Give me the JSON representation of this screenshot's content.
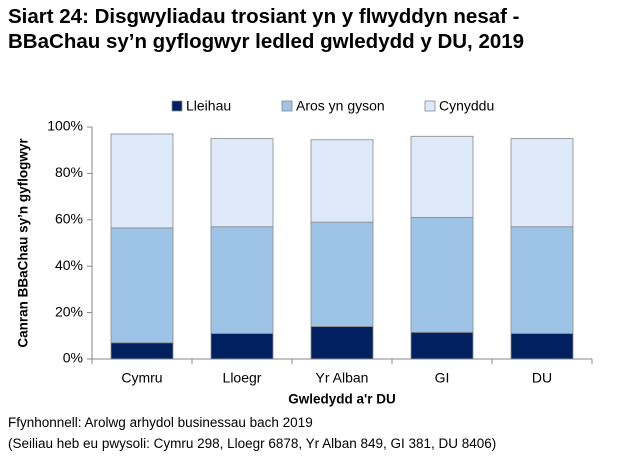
{
  "chart_data": {
    "type": "stacked_bar",
    "title": "Siart 24: Disgwyliadau trosiant yn y flwyddyn nesaf - BBaChau sy’n gyflogwyr ledled gwledydd y DU, 2019",
    "y_label": "Canran BBaChau sy’n gyflogwyr",
    "x_label": "Gwledydd a'r DU",
    "source": "Ffynhonnell: Arolwg arhydol businessau bach 2019",
    "note": "(Seiliau heb eu pwysoli: Cymru 298, Lloegr 6878, Yr Alban 849, GI 381, DU 8406)",
    "categories": [
      "Cymru",
      "Lloegr",
      "Yr Alban",
      "GI",
      "DU"
    ],
    "series": [
      {
        "name": "Lleihau",
        "color": "#002060",
        "values": [
          7,
          11,
          14,
          11.5,
          11
        ]
      },
      {
        "name": "Aros yn gyson",
        "color": "#9dc3e6",
        "values": [
          49.5,
          46,
          45,
          49.5,
          46
        ]
      },
      {
        "name": "Cynyddu",
        "color": "#dde9f8",
        "values": [
          40.5,
          38,
          35.5,
          35,
          38
        ]
      }
    ],
    "ylim": [
      0,
      100
    ],
    "yticks": [
      {
        "value": 0,
        "label": "0%"
      },
      {
        "value": 20,
        "label": "20%"
      },
      {
        "value": 40,
        "label": "40%"
      },
      {
        "value": 60,
        "label": "60%"
      },
      {
        "value": 80,
        "label": "80%"
      },
      {
        "value": 100,
        "label": "100%"
      }
    ],
    "legend": "top"
  }
}
